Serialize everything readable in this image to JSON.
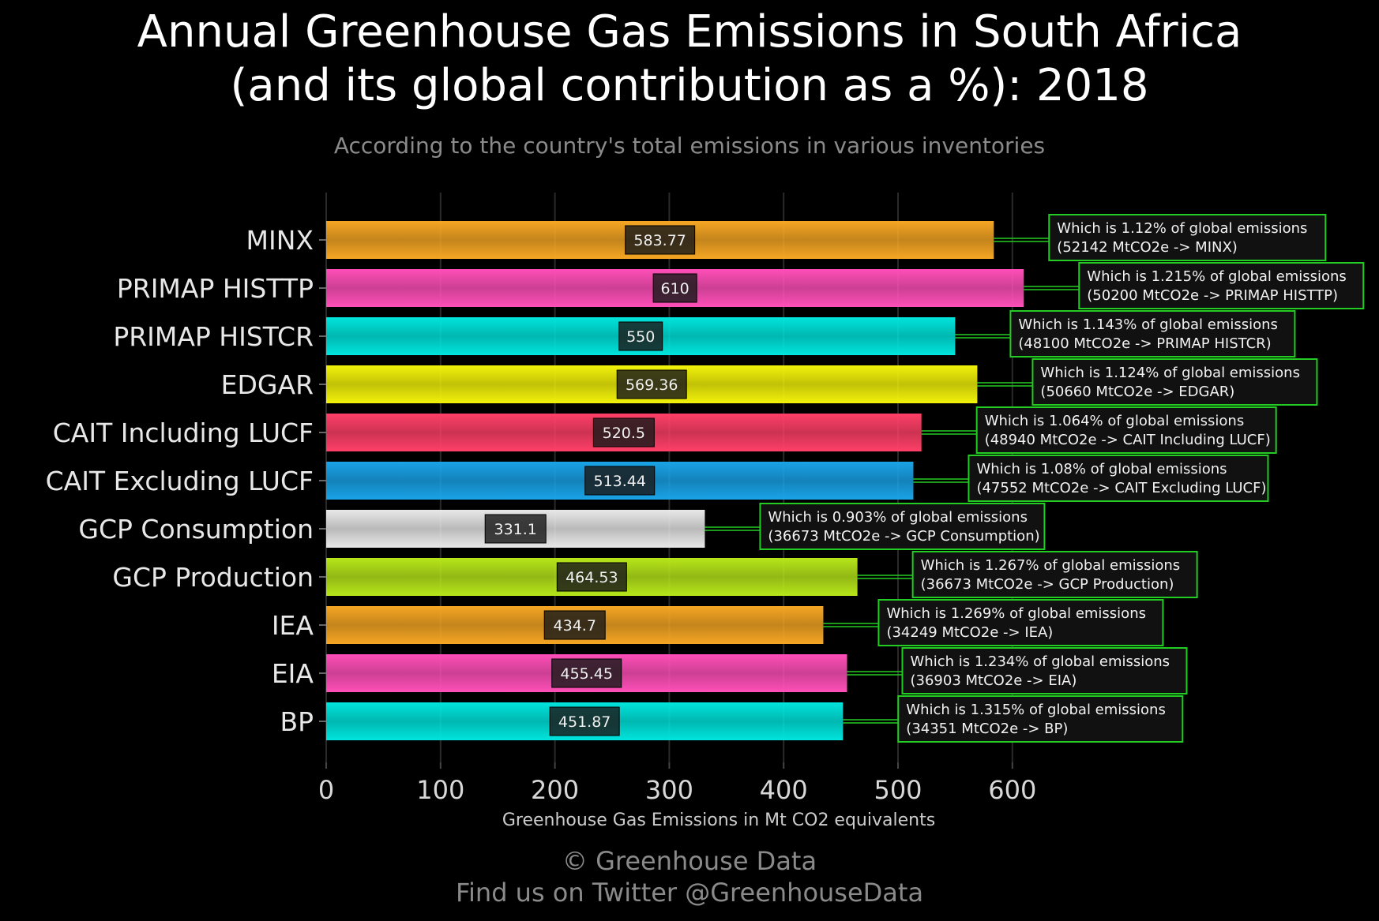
{
  "header": {
    "title_line1": "Annual Greenhouse Gas Emissions in South Africa",
    "title_line2": "(and its global contribution as a %): 2018",
    "subtitle": "According to the country's total emissions in various inventories"
  },
  "footer": {
    "copyright": "© Greenhouse Data",
    "twitter": "Find us on Twitter @GreenhouseData"
  },
  "chart_data": {
    "type": "bar",
    "orientation": "horizontal",
    "title": "Annual Greenhouse Gas Emissions in South Africa (and its global contribution as a %): 2018",
    "subtitle": "According to the country's total emissions in various inventories",
    "xlabel": "Greenhouse Gas Emissions in Mt CO2 equivalents",
    "ylabel": "",
    "xlim": [
      0,
      700
    ],
    "xticks": [
      0,
      100,
      200,
      300,
      400,
      500,
      600
    ],
    "grid": true,
    "categories": [
      "MINX",
      "PRIMAP HISTTP",
      "PRIMAP HISTCR",
      "EDGAR",
      "CAIT Including LUCF",
      "CAIT Excluding LUCF",
      "GCP Consumption",
      "GCP Production",
      "IEA",
      "EIA",
      "BP"
    ],
    "values": [
      583.77,
      610,
      550,
      569.36,
      520.5,
      513.44,
      331.1,
      464.53,
      434.7,
      455.45,
      451.87
    ],
    "value_labels": [
      "583.77",
      "610",
      "550",
      "569.36",
      "520.5",
      "513.44",
      "331.1",
      "464.53",
      "434.7",
      "455.45",
      "451.87"
    ],
    "colors": [
      "#f5a623",
      "#ff4fb8",
      "#00e5dd",
      "#f2f20a",
      "#ff3f67",
      "#19a3e8",
      "#e8e8e8",
      "#b7e61a",
      "#f5a623",
      "#ff4fb8",
      "#00e5dd"
    ],
    "annotations": [
      {
        "line1": "Which is 1.12% of global emissions",
        "line2": "(52142 MtCO2e -> MINX)"
      },
      {
        "line1": "Which is 1.215% of global emissions",
        "line2": "(50200 MtCO2e -> PRIMAP HISTTP)"
      },
      {
        "line1": "Which is 1.143% of global emissions",
        "line2": "(48100 MtCO2e -> PRIMAP HISTCR)"
      },
      {
        "line1": "Which is 1.124% of global emissions",
        "line2": "(50660 MtCO2e -> EDGAR)"
      },
      {
        "line1": "Which is 1.064% of global emissions",
        "line2": "(48940 MtCO2e -> CAIT Including LUCF)"
      },
      {
        "line1": "Which is 1.08% of global emissions",
        "line2": "(47552 MtCO2e -> CAIT Excluding LUCF)"
      },
      {
        "line1": "Which is 0.903% of global emissions",
        "line2": "(36673 MtCO2e -> GCP Consumption)"
      },
      {
        "line1": "Which is 1.267% of global emissions",
        "line2": "(36673 MtCO2e -> GCP Production)"
      },
      {
        "line1": "Which is 1.269% of global emissions",
        "line2": "(34249 MtCO2e -> IEA)"
      },
      {
        "line1": "Which is 1.234% of global emissions",
        "line2": "(36903 MtCO2e -> EIA)"
      },
      {
        "line1": "Which is 1.315% of global emissions",
        "line2": "(34351 MtCO2e -> BP)"
      }
    ],
    "annotation_border_color": "#22cc22",
    "annotation_bg_color": "#111111",
    "label_box_color": "#1a1a1a"
  }
}
